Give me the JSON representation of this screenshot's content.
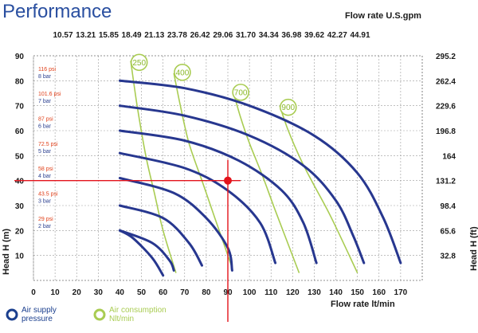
{
  "page_title": "Performance",
  "chart_data": {
    "type": "line",
    "xlabel": "Flow rate  lt/min",
    "ylabel": "Head H (m)",
    "ylabel_right": "Head H (ft)",
    "xlabel_top": "Flow rate U.S.gpm",
    "xlim": [
      0,
      180
    ],
    "ylim": [
      0,
      90
    ],
    "x_ticks": [
      "0",
      "10",
      "20",
      "30",
      "40",
      "50",
      "60",
      "70",
      "80",
      "90",
      "100",
      "110",
      "120",
      "130",
      "140",
      "150",
      "160",
      "170"
    ],
    "y_ticks": [
      "10",
      "20",
      "30",
      "40",
      "50",
      "60",
      "70",
      "80",
      "90"
    ],
    "top_ticks": [
      "10.57",
      "13.21",
      "15.85",
      "18.49",
      "21.13",
      "23.78",
      "26.42",
      "29.06",
      "31.70",
      "34.34",
      "36.98",
      "39.62",
      "42.27",
      "44.91"
    ],
    "right_ticks": [
      {
        "label": "295.2",
        "y": 90
      },
      {
        "label": "262.4",
        "y": 80
      },
      {
        "label": "229.6",
        "y": 70
      },
      {
        "label": "196.8",
        "y": 60
      },
      {
        "label": "164",
        "y": 50
      },
      {
        "label": "131.2",
        "y": 40
      },
      {
        "label": "98.4",
        "y": 30
      },
      {
        "label": "65.6",
        "y": 20
      },
      {
        "label": "32.8",
        "y": 10
      }
    ],
    "grid": true,
    "series": [
      {
        "name": "Air supply pressure",
        "psi": "116 psi",
        "bar": "8 bar",
        "label_y": 84,
        "color": "#27378f",
        "points": [
          [
            40,
            80
          ],
          [
            70,
            77
          ],
          [
            100,
            70
          ],
          [
            130,
            58
          ],
          [
            150,
            43
          ],
          [
            162,
            25
          ],
          [
            170,
            7
          ]
        ]
      },
      {
        "name": "Air supply pressure",
        "psi": "101.6 psi",
        "bar": "7 bar",
        "label_y": 74,
        "color": "#27378f",
        "points": [
          [
            40,
            70
          ],
          [
            70,
            66
          ],
          [
            100,
            58
          ],
          [
            125,
            46
          ],
          [
            140,
            32
          ],
          [
            148,
            18
          ],
          [
            153,
            7
          ]
        ]
      },
      {
        "name": "Air supply pressure",
        "psi": "87 psi",
        "bar": "6 bar",
        "label_y": 64,
        "color": "#27378f",
        "points": [
          [
            40,
            60
          ],
          [
            70,
            56
          ],
          [
            95,
            48
          ],
          [
            115,
            36
          ],
          [
            125,
            23
          ],
          [
            131,
            7
          ]
        ]
      },
      {
        "name": "Air supply pressure",
        "psi": "72.5 psi",
        "bar": "5 bar",
        "label_y": 54,
        "color": "#27378f",
        "points": [
          [
            40,
            51
          ],
          [
            70,
            45
          ],
          [
            90,
            36
          ],
          [
            105,
            23
          ],
          [
            112,
            7
          ]
        ]
      },
      {
        "name": "Air supply pressure",
        "psi": "58 psi",
        "bar": "4 bar",
        "label_y": 44,
        "color": "#27378f",
        "points": [
          [
            40,
            41
          ],
          [
            65,
            35
          ],
          [
            80,
            25
          ],
          [
            90,
            13
          ],
          [
            92,
            4
          ]
        ]
      },
      {
        "name": "Air supply pressure",
        "psi": "43.5 psi",
        "bar": "3 bar",
        "label_y": 34,
        "color": "#27378f",
        "points": [
          [
            40,
            30
          ],
          [
            60,
            25
          ],
          [
            72,
            15
          ],
          [
            78,
            6
          ]
        ]
      },
      {
        "name": "Air supply pressure",
        "psi": "29 psi",
        "bar": "2 bar",
        "label_y": 24,
        "color": "#27378f",
        "points": [
          [
            40,
            20
          ],
          [
            55,
            15
          ],
          [
            63,
            8
          ],
          [
            65,
            4
          ]
        ]
      },
      {
        "name": "Air supply pressure",
        "psi": "",
        "bar": "",
        "color": "#27378f",
        "points": [
          [
            40,
            20
          ],
          [
            46,
            17
          ],
          [
            55,
            9
          ],
          [
            60,
            2
          ]
        ]
      }
    ],
    "consumption": [
      {
        "name": "250",
        "color": "#a9cc52",
        "points": [
          [
            45,
            88
          ],
          [
            48,
            70
          ],
          [
            52,
            50
          ],
          [
            56,
            35
          ],
          [
            60,
            20
          ],
          [
            66,
            3
          ]
        ]
      },
      {
        "name": "400",
        "color": "#a9cc52",
        "points": [
          [
            65,
            83
          ],
          [
            68,
            70
          ],
          [
            72,
            55
          ],
          [
            78,
            40
          ],
          [
            84,
            25
          ],
          [
            92,
            5
          ]
        ]
      },
      {
        "name": "700",
        "color": "#a9cc52",
        "points": [
          [
            93,
            74
          ],
          [
            96,
            65
          ],
          [
            100,
            55
          ],
          [
            106,
            42
          ],
          [
            112,
            28
          ],
          [
            123,
            3
          ]
        ]
      },
      {
        "name": "900",
        "color": "#a9cc52",
        "points": [
          [
            114,
            70
          ],
          [
            118,
            60
          ],
          [
            124,
            48
          ],
          [
            130,
            38
          ],
          [
            138,
            25
          ],
          [
            150,
            3
          ]
        ]
      }
    ],
    "bubbles": [
      {
        "label": "250",
        "x": 46,
        "y": 88
      },
      {
        "label": "400",
        "x": 66,
        "y": 84
      },
      {
        "label": "700",
        "x": 93,
        "y": 76
      },
      {
        "label": "900",
        "x": 115,
        "y": 70
      }
    ],
    "operating_point": {
      "x": 90,
      "y": 40,
      "color": "#e3131b"
    },
    "legend": [
      {
        "label": "Air supply\npressure",
        "label_lines": [
          "Air supply",
          "pressure"
        ],
        "color": "#1b3f8e"
      },
      {
        "label": "Air consumption\nNlt/min",
        "label_lines": [
          "Air consumption",
          "Nlt/min"
        ],
        "color": "#a9cc52"
      }
    ]
  }
}
